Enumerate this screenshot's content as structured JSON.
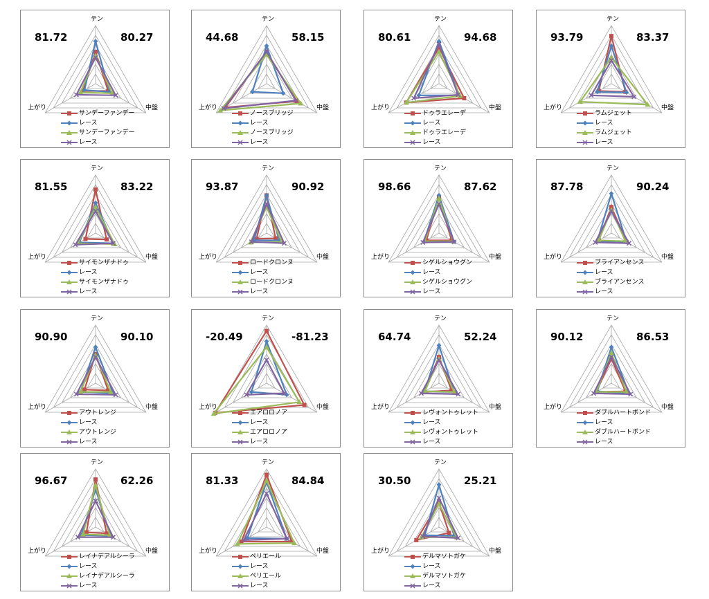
{
  "axes": [
    "テン",
    "中盤",
    "上がり"
  ],
  "race_label": "レース",
  "colors": {
    "horse_a": "#c0504d",
    "race_a": "#4f81bd",
    "horse_b": "#9bbb59",
    "race_b": "#8064a2",
    "grid": "#a6a6a6"
  },
  "chart_data": [
    {
      "type": "radar",
      "name": "サンデーファンデー",
      "left": "81.72",
      "right": "80.27",
      "series": [
        {
          "name": "サンデーファンデー",
          "values": [
            0.55,
            0.25,
            0.25
          ]
        },
        {
          "name": "レース",
          "values": [
            0.73,
            0.28,
            0.22
          ]
        },
        {
          "name": "サンデーファンデー",
          "values": [
            0.48,
            0.33,
            0.3
          ]
        },
        {
          "name": "レース",
          "values": [
            0.45,
            0.4,
            0.38
          ]
        }
      ]
    },
    {
      "type": "radar",
      "name": "ノースブリッジ",
      "left": "44.68",
      "right": "58.15",
      "series": [
        {
          "name": "ノースブリッジ",
          "values": [
            0.55,
            0.6,
            0.82
          ]
        },
        {
          "name": "レース",
          "values": [
            0.65,
            0.33,
            0.28
          ]
        },
        {
          "name": "ノースブリッジ",
          "values": [
            0.5,
            0.68,
            0.92
          ]
        },
        {
          "name": "レース",
          "values": [
            0.55,
            0.58,
            0.85
          ]
        }
      ]
    },
    {
      "type": "radar",
      "name": "ドゥラエレーデ",
      "left": "80.61",
      "right": "94.68",
      "series": [
        {
          "name": "ドゥラエレーデ",
          "values": [
            0.62,
            0.5,
            0.65
          ]
        },
        {
          "name": "レース",
          "values": [
            0.73,
            0.4,
            0.4
          ]
        },
        {
          "name": "ドゥラエレーデ",
          "values": [
            0.55,
            0.42,
            0.65
          ]
        },
        {
          "name": "レース",
          "values": [
            0.68,
            0.38,
            0.5
          ]
        }
      ]
    },
    {
      "type": "radar",
      "name": "ラムジェット",
      "left": "93.79",
      "right": "83.37",
      "series": [
        {
          "name": "ラムジェット",
          "values": [
            0.82,
            0.28,
            0.25
          ]
        },
        {
          "name": "レース",
          "values": [
            0.65,
            0.3,
            0.28
          ]
        },
        {
          "name": "ラムジェット",
          "values": [
            0.45,
            0.72,
            0.62
          ]
        },
        {
          "name": "レース",
          "values": [
            0.4,
            0.45,
            0.4
          ]
        }
      ]
    },
    {
      "type": "radar",
      "name": "サイモンザナドゥ",
      "left": "81.55",
      "right": "83.22",
      "series": [
        {
          "name": "サイモンザナドゥ",
          "values": [
            0.75,
            0.22,
            0.2
          ]
        },
        {
          "name": "レース",
          "values": [
            0.52,
            0.35,
            0.32
          ]
        },
        {
          "name": "サイモンザナドゥ",
          "values": [
            0.45,
            0.38,
            0.35
          ]
        },
        {
          "name": "レース",
          "values": [
            0.38,
            0.35,
            0.4
          ]
        }
      ]
    },
    {
      "type": "radar",
      "name": "ロードクロンヌ",
      "left": "93.87",
      "right": "90.92",
      "series": [
        {
          "name": "ロードクロンヌ",
          "values": [
            0.65,
            0.18,
            0.2
          ]
        },
        {
          "name": "レース",
          "values": [
            0.65,
            0.25,
            0.25
          ]
        },
        {
          "name": "ロードクロンヌ",
          "values": [
            0.45,
            0.3,
            0.32
          ]
        },
        {
          "name": "レース",
          "values": [
            0.5,
            0.35,
            0.3
          ]
        }
      ]
    },
    {
      "type": "radar",
      "name": "シゲルショウグン",
      "left": "98.66",
      "right": "87.62",
      "series": [
        {
          "name": "シゲルショウグン",
          "values": [
            0.62,
            0.25,
            0.25
          ]
        },
        {
          "name": "レース",
          "values": [
            0.65,
            0.3,
            0.3
          ]
        },
        {
          "name": "シゲルショウグン",
          "values": [
            0.6,
            0.28,
            0.28
          ]
        },
        {
          "name": "レース",
          "values": [
            0.5,
            0.3,
            0.32
          ]
        }
      ]
    },
    {
      "type": "radar",
      "name": "ブライアンセンス",
      "left": "87.78",
      "right": "90.24",
      "series": [
        {
          "name": "ブライアンセンス",
          "values": [
            0.45,
            0.3,
            0.25
          ]
        },
        {
          "name": "レース",
          "values": [
            0.68,
            0.3,
            0.28
          ]
        },
        {
          "name": "ブライアンセンス",
          "values": [
            0.4,
            0.28,
            0.25
          ]
        },
        {
          "name": "レース",
          "values": [
            0.38,
            0.35,
            0.32
          ]
        }
      ]
    },
    {
      "type": "radar",
      "name": "アウトレンジ",
      "left": "90.90",
      "right": "90.10",
      "series": [
        {
          "name": "アウトレンジ",
          "values": [
            0.5,
            0.25,
            0.22
          ]
        },
        {
          "name": "レース",
          "values": [
            0.62,
            0.35,
            0.3
          ]
        },
        {
          "name": "アウトレンジ",
          "values": [
            0.48,
            0.3,
            0.3
          ]
        },
        {
          "name": "レース",
          "values": [
            0.45,
            0.4,
            0.38
          ]
        }
      ]
    },
    {
      "type": "radar",
      "name": "エアロロノア",
      "left": "-20.49",
      "right": "-81.23",
      "series": [
        {
          "name": "エアロロノア",
          "values": [
            0.9,
            0.75,
            1.02
          ]
        },
        {
          "name": "レース",
          "values": [
            0.72,
            0.4,
            0.3
          ]
        },
        {
          "name": "エアロロノア",
          "values": [
            0.62,
            0.65,
            1.05
          ]
        },
        {
          "name": "レース",
          "values": [
            0.4,
            0.35,
            0.4
          ]
        }
      ]
    },
    {
      "type": "radar",
      "name": "レヴォントゥレット",
      "left": "64.74",
      "right": "52.24",
      "series": [
        {
          "name": "レヴォントゥレット",
          "values": [
            0.45,
            0.25,
            0.3
          ]
        },
        {
          "name": "レース",
          "values": [
            0.65,
            0.3,
            0.28
          ]
        },
        {
          "name": "レヴォントゥレット",
          "values": [
            0.42,
            0.3,
            0.28
          ]
        },
        {
          "name": "レース",
          "values": [
            0.4,
            0.38,
            0.35
          ]
        }
      ]
    },
    {
      "type": "radar",
      "name": "ダブルハートボンド",
      "left": "90.12",
      "right": "86.53",
      "series": [
        {
          "name": "ダブルハートボンド",
          "values": [
            0.42,
            0.28,
            0.3
          ]
        },
        {
          "name": "レース",
          "values": [
            0.62,
            0.35,
            0.28
          ]
        },
        {
          "name": "ダブルハートボンド",
          "values": [
            0.52,
            0.3,
            0.3
          ]
        },
        {
          "name": "レース",
          "values": [
            0.45,
            0.38,
            0.35
          ]
        }
      ]
    },
    {
      "type": "radar",
      "name": "レイナデアルシーラ",
      "left": "96.67",
      "right": "62.26",
      "series": [
        {
          "name": "レイナデアルシーラ",
          "values": [
            0.82,
            0.22,
            0.18
          ]
        },
        {
          "name": "レース",
          "values": [
            0.65,
            0.3,
            0.28
          ]
        },
        {
          "name": "レイナデアルシーラ",
          "values": [
            0.72,
            0.28,
            0.25
          ]
        },
        {
          "name": "レース",
          "values": [
            0.45,
            0.35,
            0.35
          ]
        }
      ]
    },
    {
      "type": "radar",
      "name": "ペリエール",
      "left": "81.33",
      "right": "84.84",
      "series": [
        {
          "name": "ペリエール",
          "values": [
            0.9,
            0.5,
            0.5
          ]
        },
        {
          "name": "レース",
          "values": [
            0.78,
            0.4,
            0.38
          ]
        },
        {
          "name": "ペリエール",
          "values": [
            0.8,
            0.55,
            0.58
          ]
        },
        {
          "name": "レース",
          "values": [
            0.58,
            0.4,
            0.45
          ]
        }
      ]
    },
    {
      "type": "radar",
      "name": "デルマソトガケ",
      "left": "30.50",
      "right": "25.21",
      "series": [
        {
          "name": "デルマソトガケ",
          "values": [
            0.42,
            0.2,
            0.45
          ]
        },
        {
          "name": "レース",
          "values": [
            0.73,
            0.3,
            0.28
          ]
        },
        {
          "name": "デルマソトガケ",
          "values": [
            0.4,
            0.35,
            0.35
          ]
        },
        {
          "name": "レース",
          "values": [
            0.5,
            0.38,
            0.32
          ]
        }
      ]
    }
  ]
}
